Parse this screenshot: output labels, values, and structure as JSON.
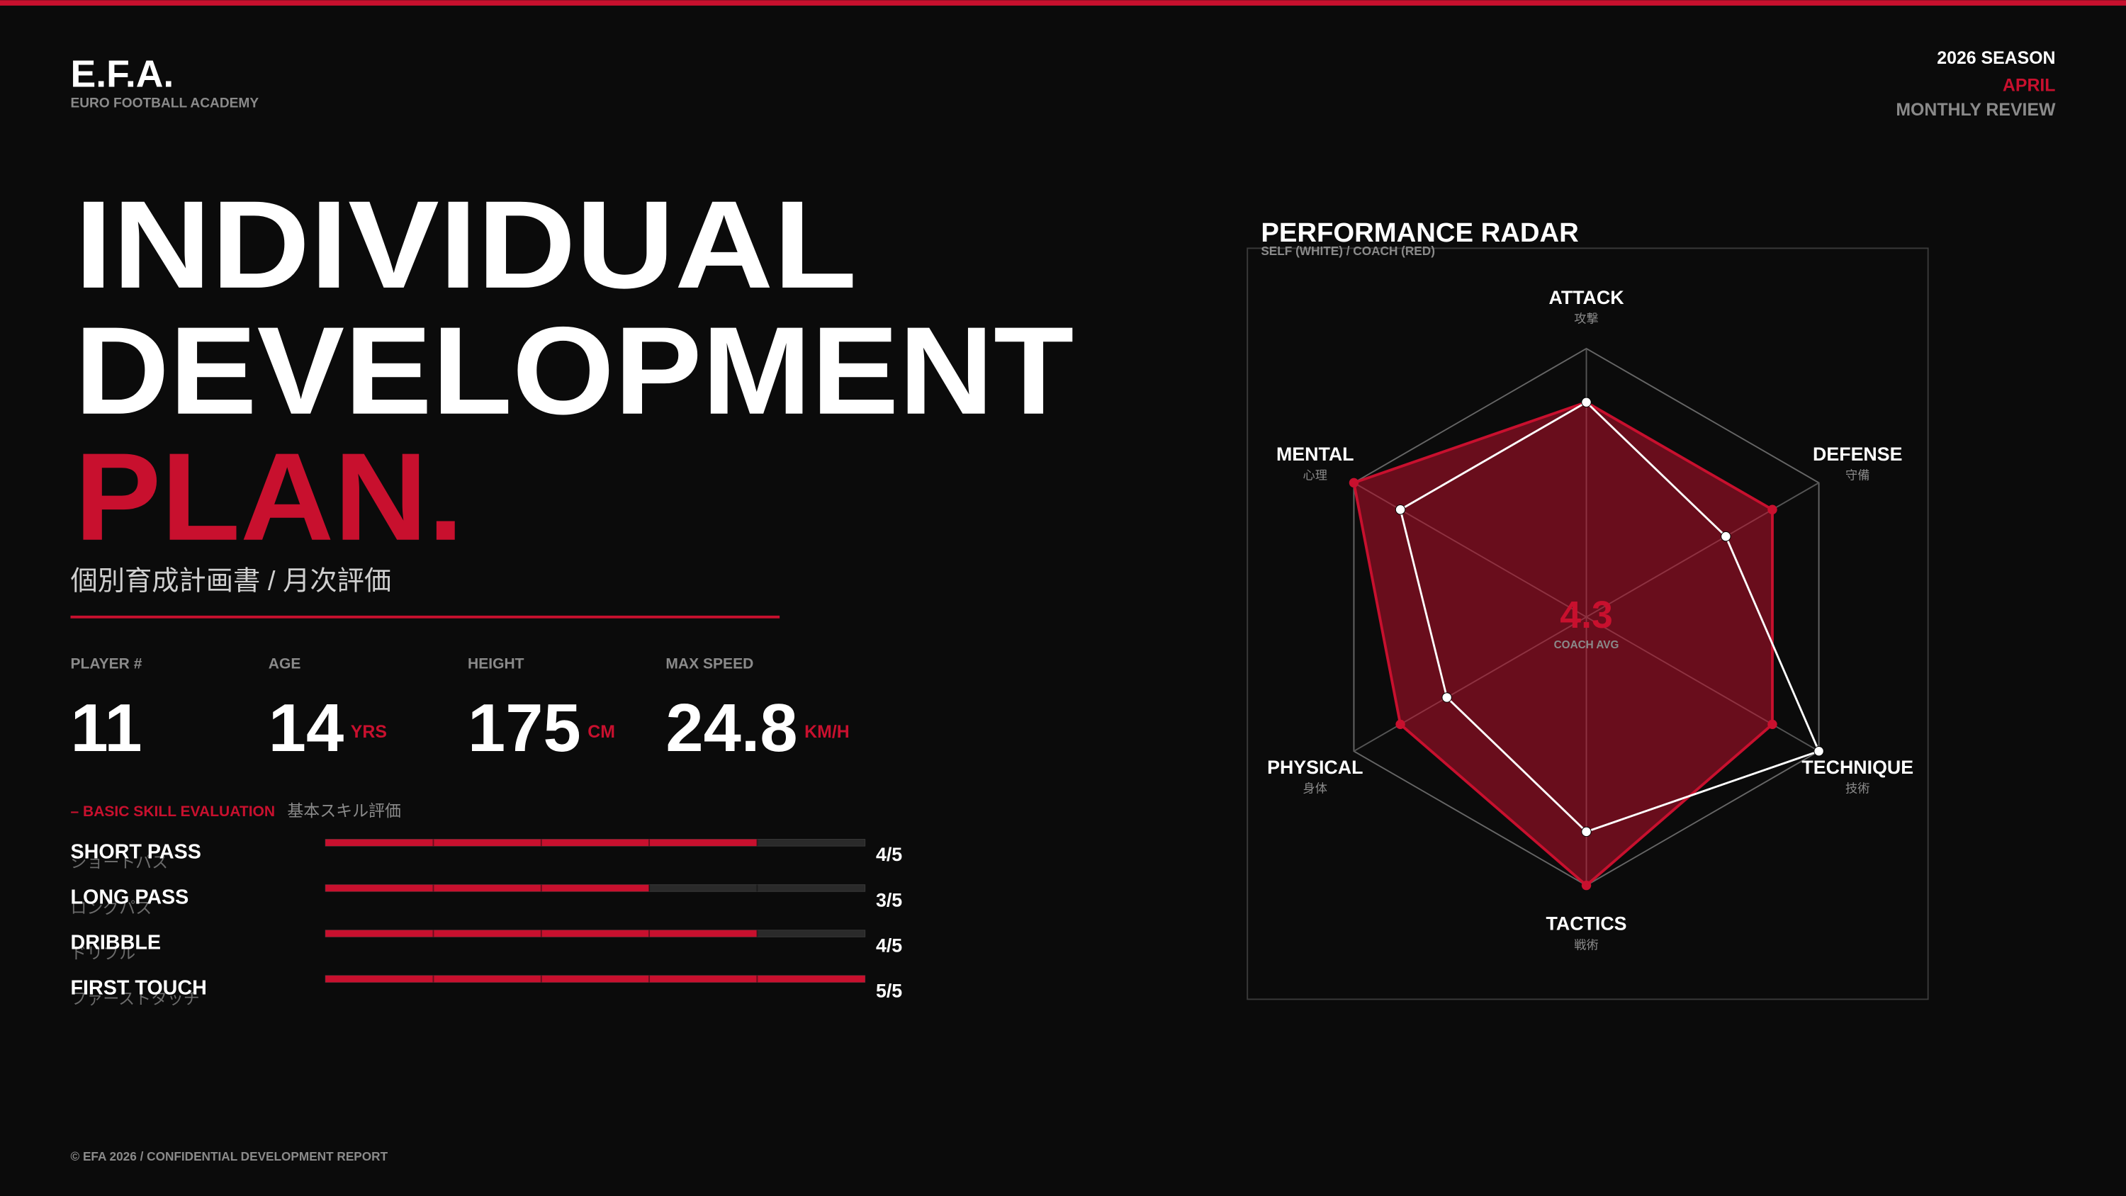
{
  "header": {
    "logo": "E.F.A.",
    "logo_subtitle": "EURO FOOTBALL ACADEMY",
    "season": "2026 SEASON",
    "month": "APRIL",
    "review": "MONTHLY REVIEW"
  },
  "title": {
    "lines": [
      "INDIVIDUAL",
      "DEVELOPMENT"
    ],
    "accent": "PLAN.",
    "subtitle": "個別育成計画書 / 月次評価"
  },
  "stats": [
    {
      "label": "PLAYER #",
      "value": 11
    },
    {
      "label": "AGE",
      "value": 14,
      "unit": "YRS"
    },
    {
      "label": "HEIGHT",
      "value": 175,
      "unit": "CM"
    },
    {
      "label": "MAX SPEED",
      "value": 24.8,
      "unit": "KM/H"
    }
  ],
  "chart_data": [
    {
      "type": "radar",
      "title": "PERFORMANCE RADAR",
      "subtitle": "SELF (WHITE) / COACH (RED)",
      "categories": [
        "ATTACK",
        "DEFENSE",
        "TECHNIQUE",
        "TACTICS",
        "PHYSICAL",
        "MENTAL"
      ],
      "category_subtitles": [
        "攻撃",
        "守備",
        "技術",
        "戦術",
        "身体",
        "心理"
      ],
      "series": [
        {
          "color": "#c8102e",
          "values": [
            4,
            4,
            4,
            5,
            4,
            5
          ]
        },
        {
          "color": "#ffffff",
          "values": [
            4,
            3,
            5,
            4,
            3,
            4
          ]
        }
      ],
      "rlim": [
        0,
        5
      ],
      "center_value": "4.3",
      "center_label": "COACH AVG"
    },
    {
      "type": "bar",
      "orientation": "horizontal",
      "title": "– BASIC SKILL EVALUATION",
      "subtitle": "基本スキル評価",
      "categories": [
        "SHORT PASS",
        "LONG PASS",
        "DRIBBLE",
        "FIRST TOUCH"
      ],
      "category_subtitles": [
        "ショートパス",
        "ロングパス",
        "ドリブル",
        "ファーストタッチ"
      ],
      "values": [
        4,
        3,
        4,
        5
      ],
      "value_labels": [
        "4/5",
        "3/5",
        "4/5",
        "5/5"
      ],
      "xlim": [
        0,
        5
      ],
      "color": "#c8102e"
    }
  ],
  "footer": "© EFA 2026  /  CONFIDENTIAL DEVELOPMENT REPORT"
}
